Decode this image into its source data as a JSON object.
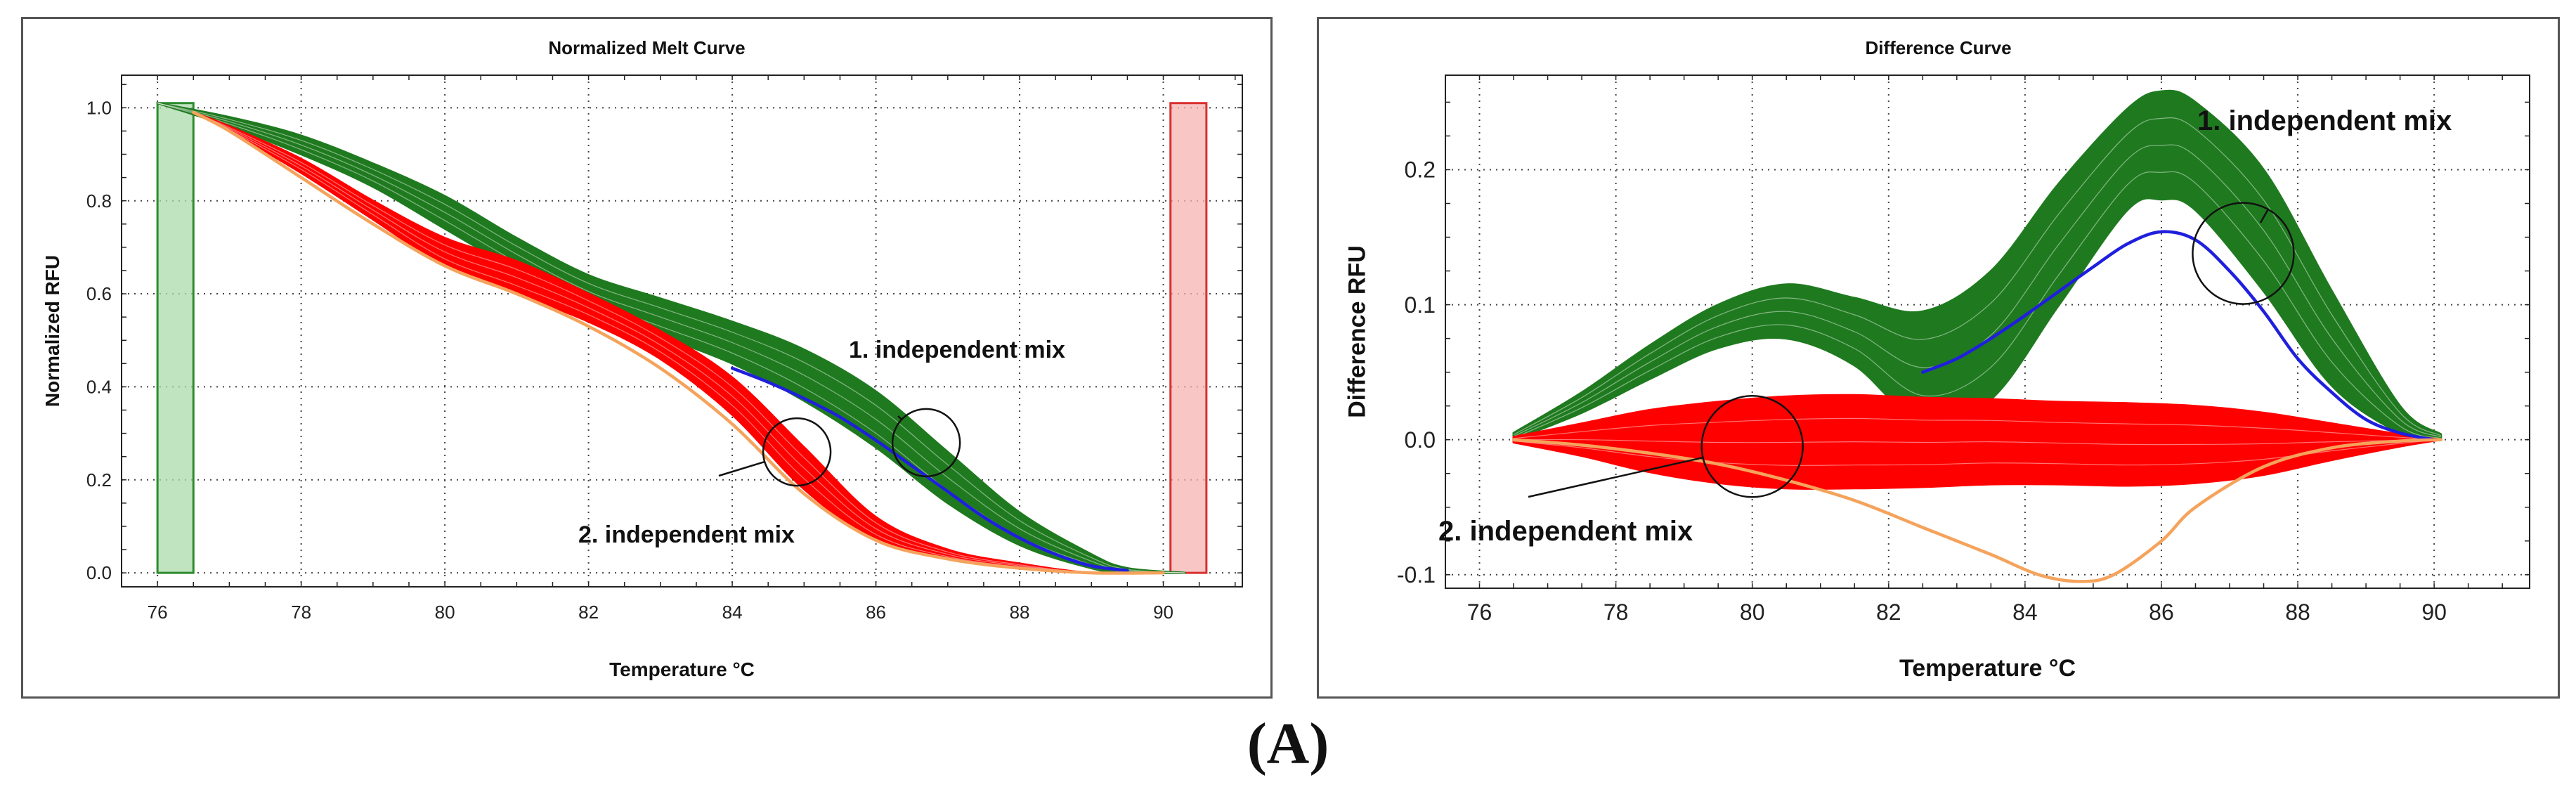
{
  "figure_label": "(A)",
  "colors": {
    "green": "#1f7a1f",
    "red": "#ff0000",
    "blue": "#1f1fdd",
    "orange": "#f5a35c",
    "green_band": "#a9dba9",
    "red_band": "#f7b3b3",
    "band_line_green": "#2e8b2e",
    "band_line_red": "#d92f2f"
  },
  "chart_data": [
    {
      "type": "line",
      "title": "Normalized Melt Curve",
      "xlabel": "Temperature  °C",
      "ylabel": "Normalized RFU",
      "xlim": [
        75.5,
        91.1
      ],
      "ylim": [
        -0.03,
        1.07
      ],
      "xticks": [
        76,
        78,
        80,
        82,
        84,
        86,
        88,
        90
      ],
      "yticks": [
        0.0,
        0.2,
        0.4,
        0.6,
        0.8,
        1.0
      ],
      "ytick_labels": [
        "0.0",
        "0.2",
        "0.4",
        "0.6",
        "0.8",
        "1.0"
      ],
      "grid": "dotted",
      "bands": [
        {
          "name": "pre-melt region",
          "x0": 76.0,
          "x1": 76.5,
          "color": "green"
        },
        {
          "name": "post-melt region",
          "x0": 90.1,
          "x1": 90.6,
          "color": "red"
        }
      ],
      "series": [
        {
          "name": "green group",
          "color": "green",
          "x": [
            76,
            77,
            78,
            79,
            80,
            81,
            82,
            83,
            84,
            85,
            86,
            87,
            88,
            89,
            89.5,
            90.3
          ],
          "upper": [
            1.01,
            0.98,
            0.94,
            0.88,
            0.81,
            0.72,
            0.64,
            0.59,
            0.54,
            0.48,
            0.39,
            0.26,
            0.13,
            0.04,
            0.01,
            0.0
          ],
          "lower": [
            1.01,
            0.96,
            0.9,
            0.83,
            0.74,
            0.65,
            0.57,
            0.51,
            0.45,
            0.37,
            0.27,
            0.15,
            0.06,
            0.01,
            0.0,
            0.0
          ]
        },
        {
          "name": "red group",
          "color": "red",
          "x": [
            76.5,
            77,
            78,
            79,
            80,
            81,
            82,
            83,
            84,
            85,
            86,
            87,
            88,
            89,
            90
          ],
          "upper": [
            0.99,
            0.96,
            0.89,
            0.8,
            0.72,
            0.67,
            0.6,
            0.52,
            0.42,
            0.27,
            0.12,
            0.05,
            0.02,
            0.0,
            0.0
          ],
          "lower": [
            0.99,
            0.95,
            0.86,
            0.76,
            0.66,
            0.6,
            0.54,
            0.46,
            0.34,
            0.18,
            0.07,
            0.03,
            0.01,
            0.0,
            0.0
          ]
        },
        {
          "name": "blue curve",
          "color": "blue",
          "x": [
            84.0,
            84.5,
            85,
            85.5,
            86,
            86.5,
            87,
            87.5,
            88,
            88.5,
            89,
            89.5
          ],
          "y": [
            0.44,
            0.41,
            0.375,
            0.335,
            0.285,
            0.23,
            0.175,
            0.12,
            0.075,
            0.04,
            0.015,
            0.005
          ]
        },
        {
          "name": "orange curve",
          "color": "orange",
          "x": [
            76.5,
            77,
            78,
            79,
            80,
            81,
            82,
            83,
            84,
            85,
            86,
            87,
            88,
            89,
            90
          ],
          "y": [
            0.99,
            0.95,
            0.85,
            0.75,
            0.66,
            0.6,
            0.53,
            0.44,
            0.32,
            0.17,
            0.07,
            0.03,
            0.01,
            0.0,
            0.0
          ]
        }
      ],
      "annotations": [
        {
          "text": "1. independent mix",
          "circle_center": [
            86.7,
            0.28
          ]
        },
        {
          "text": "2. independent mix",
          "circle_center": [
            84.9,
            0.26
          ]
        }
      ]
    },
    {
      "type": "line",
      "title": "Difference Curve",
      "xlabel": "Temperature  °C",
      "ylabel": "Difference RFU",
      "xlim": [
        75.5,
        91.4
      ],
      "ylim": [
        -0.11,
        0.27
      ],
      "xticks": [
        76,
        78,
        80,
        82,
        84,
        86,
        88,
        90
      ],
      "yticks": [
        -0.1,
        0.0,
        0.1,
        0.2
      ],
      "ytick_labels": [
        "-0.1",
        "0.0",
        "0.1",
        "0.2"
      ],
      "grid": "dotted",
      "series": [
        {
          "name": "green group",
          "color": "green",
          "x": [
            76.5,
            77.5,
            78.5,
            79.5,
            80.5,
            81.5,
            82.5,
            83.5,
            84.5,
            85.5,
            86,
            86.5,
            87.5,
            88.5,
            89.5,
            90.1
          ],
          "upper": [
            0.005,
            0.035,
            0.07,
            0.1,
            0.115,
            0.105,
            0.095,
            0.125,
            0.19,
            0.245,
            0.258,
            0.25,
            0.2,
            0.11,
            0.025,
            0.004
          ],
          "lower": [
            0.0,
            0.02,
            0.045,
            0.068,
            0.075,
            0.055,
            0.012,
            0.03,
            0.1,
            0.17,
            0.178,
            0.17,
            0.11,
            0.04,
            0.005,
            0.0
          ]
        },
        {
          "name": "red group",
          "color": "red",
          "x": [
            76.5,
            77.5,
            78.5,
            79.5,
            80.5,
            81.5,
            82.5,
            83.5,
            84.5,
            85.5,
            86.5,
            87.5,
            88.5,
            89.5,
            90.1
          ],
          "upper": [
            0.002,
            0.012,
            0.022,
            0.028,
            0.032,
            0.033,
            0.031,
            0.03,
            0.028,
            0.027,
            0.025,
            0.02,
            0.012,
            0.004,
            0.0
          ],
          "lower": [
            -0.002,
            -0.012,
            -0.024,
            -0.032,
            -0.036,
            -0.036,
            -0.035,
            -0.033,
            -0.033,
            -0.034,
            -0.032,
            -0.026,
            -0.015,
            -0.005,
            0.0
          ]
        },
        {
          "name": "blue curve",
          "color": "blue",
          "x": [
            82.5,
            83,
            83.5,
            84,
            84.5,
            85,
            85.5,
            86,
            86.5,
            87,
            87.5,
            88,
            88.5,
            89,
            89.5,
            90
          ],
          "y": [
            0.05,
            0.06,
            0.075,
            0.092,
            0.11,
            0.128,
            0.145,
            0.154,
            0.148,
            0.125,
            0.095,
            0.06,
            0.035,
            0.015,
            0.005,
            0.0
          ]
        },
        {
          "name": "orange curve",
          "color": "orange",
          "x": [
            76.5,
            77.5,
            78.5,
            79.5,
            80.5,
            81.5,
            82.5,
            83.5,
            84.2,
            84.8,
            85.3,
            86,
            86.5,
            87.5,
            88.5,
            89.5,
            90.1
          ],
          "y": [
            0.0,
            -0.004,
            -0.01,
            -0.018,
            -0.03,
            -0.045,
            -0.065,
            -0.085,
            -0.1,
            -0.105,
            -0.1,
            -0.075,
            -0.05,
            -0.02,
            -0.006,
            -0.001,
            0.0
          ]
        }
      ],
      "annotations": [
        {
          "text": "1. independent mix",
          "circle_center": [
            87.2,
            0.138
          ]
        },
        {
          "text": "2. independent mix",
          "circle_center": [
            80.0,
            -0.005
          ]
        }
      ]
    }
  ]
}
